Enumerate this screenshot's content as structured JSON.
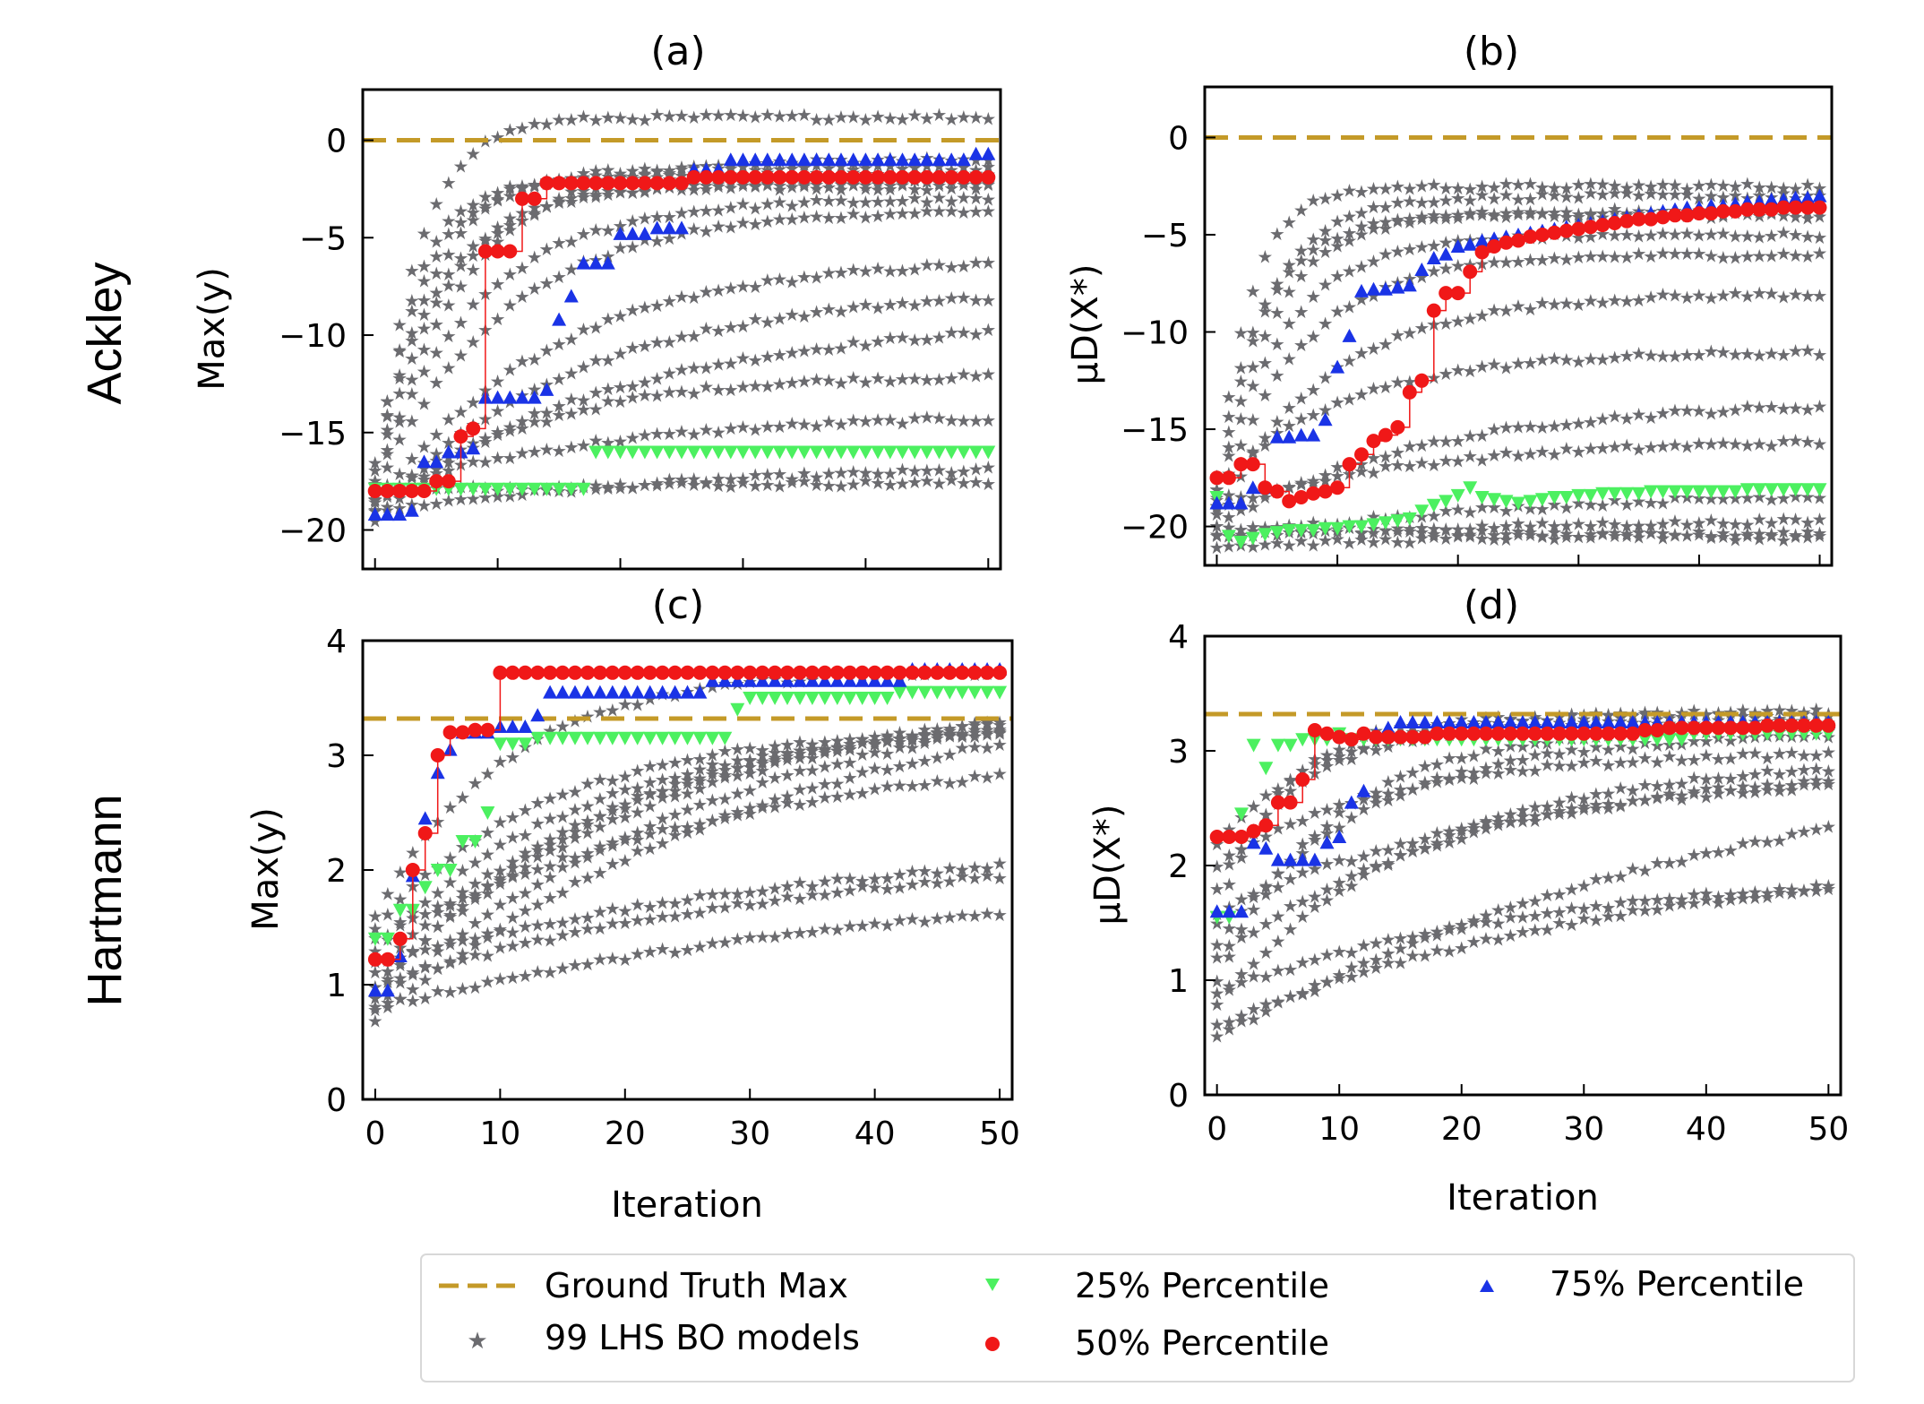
{
  "figure": {
    "row_labels": [
      "Ackley",
      "Hartmann"
    ],
    "legend": {
      "ground_truth": "Ground Truth Max",
      "models": "99 LHS BO models",
      "p25": "25% Percentile",
      "p50": "50% Percentile",
      "p75": "75% Percentile"
    },
    "colors": {
      "ground_truth": "#c49a28",
      "models": "#6b6b6f",
      "p25": "#4cf060",
      "p50": "#f01818",
      "p75": "#1a33e6"
    }
  },
  "chart_data": [
    {
      "id": "a",
      "type": "scatter",
      "title": "(a)",
      "xlabel": "",
      "ylabel": "Max(y)",
      "xlim": [
        -1,
        51
      ],
      "ylim": [
        -22,
        2.6
      ],
      "xticks": [
        0,
        10,
        20,
        30,
        40,
        50
      ],
      "yticks": [
        0,
        -5,
        -10,
        -15,
        -20
      ],
      "ground_truth": 0,
      "gray_seeds": [
        [
          -18.5,
          1.9,
          -1.4
        ],
        [
          -19,
          2.8,
          -2.0
        ],
        [
          -17.5,
          1.5,
          -2.2
        ],
        [
          -18,
          0.8,
          -3.5
        ],
        [
          -19,
          0.6,
          -6.0
        ],
        [
          -18.5,
          1.2,
          -1.0
        ],
        [
          -17,
          2.2,
          -1.8
        ],
        [
          -18.5,
          0.4,
          -9.0
        ],
        [
          -16.5,
          1.6,
          -2.4
        ],
        [
          -19.5,
          0.7,
          -12.0
        ],
        [
          -18,
          0.45,
          -14.0
        ],
        [
          -19,
          0.3,
          -16.5
        ],
        [
          -17.5,
          1.0,
          -3.0
        ],
        [
          -18.5,
          2.5,
          1.2
        ],
        [
          -19,
          0.5,
          -7.5
        ],
        [
          -18,
          0.35,
          -17.5
        ]
      ],
      "series": [
        {
          "name": "25% Percentile",
          "values": [
            -17.9,
            -17.9,
            -17.9,
            -17.9,
            -17.9,
            -17.9,
            -17.9,
            -17.9,
            -17.9,
            -17.9,
            -17.9,
            -17.9,
            -17.9,
            -17.9,
            -17.9,
            -17.9,
            -17.9,
            -17.9,
            -16.0,
            -16.0,
            -16.0,
            -16.0,
            -16.0,
            -16.0,
            -16.0,
            -16.0,
            -16.0,
            -16.0,
            -16.0,
            -16.0,
            -16.0,
            -16.0,
            -16.0,
            -16.0,
            -16.0,
            -16.0,
            -16.0,
            -16.0,
            -16.0,
            -16.0,
            -16.0,
            -16.0,
            -16.0,
            -16.0,
            -16.0,
            -16.0,
            -16.0,
            -16.0,
            -16.0,
            -16.0,
            -16.0
          ]
        },
        {
          "name": "50% Percentile",
          "values": [
            -18.0,
            -18.0,
            -18.0,
            -18.0,
            -18.0,
            -17.5,
            -17.5,
            -15.2,
            -14.8,
            -5.7,
            -5.7,
            -5.7,
            -3.0,
            -3.0,
            -2.2,
            -2.2,
            -2.2,
            -2.2,
            -2.2,
            -2.2,
            -2.2,
            -2.2,
            -2.2,
            -2.2,
            -2.2,
            -2.2,
            -1.9,
            -1.9,
            -1.9,
            -1.9,
            -1.9,
            -1.9,
            -1.9,
            -1.9,
            -1.9,
            -1.9,
            -1.9,
            -1.9,
            -1.9,
            -1.9,
            -1.9,
            -1.9,
            -1.9,
            -1.9,
            -1.9,
            -1.9,
            -1.9,
            -1.9,
            -1.9,
            -1.9,
            -1.9
          ]
        },
        {
          "name": "75% Percentile",
          "values": [
            -19.2,
            -19.2,
            -19.2,
            -19.0,
            -16.5,
            -16.5,
            -16.0,
            -16.0,
            -15.8,
            -13.2,
            -13.2,
            -13.2,
            -13.2,
            -13.2,
            -12.8,
            -9.2,
            -8.0,
            -6.3,
            -6.3,
            -6.3,
            -4.8,
            -4.8,
            -4.8,
            -4.5,
            -4.5,
            -4.5,
            -1.5,
            -1.5,
            -1.5,
            -1.0,
            -1.0,
            -1.0,
            -1.0,
            -1.0,
            -1.0,
            -1.0,
            -1.0,
            -1.0,
            -1.0,
            -1.0,
            -1.0,
            -1.0,
            -1.0,
            -1.0,
            -1.0,
            -1.0,
            -1.0,
            -1.0,
            -1.0,
            -0.7,
            -0.7
          ]
        }
      ]
    },
    {
      "id": "b",
      "type": "scatter",
      "title": "(b)",
      "xlabel": "",
      "ylabel": "μD(X*)",
      "xlim": [
        -1,
        51
      ],
      "ylim": [
        -22,
        2.6
      ],
      "xticks": [
        0,
        10,
        20,
        30,
        40,
        50
      ],
      "yticks": [
        0,
        -5,
        -10,
        -15,
        -20
      ],
      "ground_truth": 0,
      "gray_seeds": [
        [
          -18,
          3.0,
          -2.5
        ],
        [
          -17.5,
          2.0,
          -3.0
        ],
        [
          -19,
          1.8,
          -3.8
        ],
        [
          -18.5,
          1.5,
          -5.0
        ],
        [
          -19.5,
          0.9,
          -8.0
        ],
        [
          -18,
          0.8,
          -11.0
        ],
        [
          -20,
          0.5,
          -13.5
        ],
        [
          -19,
          0.5,
          -15.5
        ],
        [
          -20.5,
          0.3,
          -18.0
        ],
        [
          -21,
          0.2,
          -20.0
        ],
        [
          -20,
          0.15,
          -21.0
        ],
        [
          -18.5,
          2.2,
          -4.0
        ],
        [
          -19,
          1.2,
          -6.0
        ],
        [
          -20.5,
          0.25,
          -19.5
        ]
      ],
      "series": [
        {
          "name": "25% Percentile",
          "values": [
            -18.5,
            -20.5,
            -20.8,
            -20.6,
            -20.4,
            -20.3,
            -20.2,
            -20.2,
            -20.2,
            -20.1,
            -20.1,
            -20.0,
            -20.0,
            -19.9,
            -19.8,
            -19.7,
            -19.6,
            -19.2,
            -18.9,
            -18.7,
            -18.4,
            -18.0,
            -18.5,
            -18.6,
            -18.7,
            -18.8,
            -18.7,
            -18.6,
            -18.5,
            -18.5,
            -18.4,
            -18.4,
            -18.3,
            -18.3,
            -18.3,
            -18.3,
            -18.2,
            -18.2,
            -18.2,
            -18.2,
            -18.2,
            -18.2,
            -18.2,
            -18.2,
            -18.1,
            -18.1,
            -18.1,
            -18.1,
            -18.1,
            -18.1,
            -18.1
          ]
        },
        {
          "name": "50% Percentile",
          "values": [
            -17.5,
            -17.5,
            -16.8,
            -16.8,
            -18.0,
            -18.2,
            -18.7,
            -18.5,
            -18.3,
            -18.2,
            -18.0,
            -16.8,
            -16.3,
            -15.6,
            -15.3,
            -14.9,
            -13.1,
            -12.5,
            -8.9,
            -8.0,
            -8.0,
            -6.9,
            -5.9,
            -5.6,
            -5.4,
            -5.3,
            -5.1,
            -5.0,
            -4.9,
            -4.8,
            -4.7,
            -4.6,
            -4.5,
            -4.4,
            -4.3,
            -4.2,
            -4.2,
            -4.1,
            -4.0,
            -4.0,
            -3.9,
            -3.9,
            -3.8,
            -3.8,
            -3.7,
            -3.7,
            -3.7,
            -3.6,
            -3.6,
            -3.6,
            -3.6
          ]
        },
        {
          "name": "75% Percentile",
          "values": [
            -18.8,
            -18.8,
            -18.8,
            -18.0,
            -18.0,
            -15.4,
            -15.4,
            -15.3,
            -15.3,
            -14.5,
            -11.8,
            -10.2,
            -7.9,
            -7.8,
            -7.8,
            -7.7,
            -7.6,
            -6.8,
            -6.2,
            -6.0,
            -5.6,
            -5.5,
            -5.3,
            -5.2,
            -5.1,
            -5.0,
            -4.9,
            -4.8,
            -4.7,
            -4.6,
            -4.5,
            -4.4,
            -4.3,
            -4.2,
            -4.1,
            -4.0,
            -3.9,
            -3.8,
            -3.7,
            -3.6,
            -3.6,
            -3.5,
            -3.5,
            -3.4,
            -3.3,
            -3.3,
            -3.2,
            -3.2,
            -3.1,
            -3.1,
            -3.0
          ]
        }
      ]
    },
    {
      "id": "c",
      "type": "scatter",
      "title": "(c)",
      "xlabel": "Iteration",
      "ylabel": "Max(y)",
      "xlim": [
        -1,
        51
      ],
      "ylim": [
        0,
        4
      ],
      "xticks": [
        0,
        10,
        20,
        30,
        40,
        50
      ],
      "yticks": [
        0,
        1,
        2,
        3,
        4
      ],
      "ground_truth": 3.32,
      "gray_seeds": [
        [
          0.7,
          0.25,
          3.8
        ],
        [
          0.8,
          0.3,
          3.7
        ],
        [
          1.0,
          0.35,
          3.6
        ],
        [
          1.1,
          0.4,
          3.5
        ],
        [
          1.3,
          0.5,
          3.3
        ],
        [
          1.5,
          0.6,
          3.25
        ],
        [
          0.9,
          0.45,
          3.4
        ],
        [
          1.2,
          0.2,
          2.4
        ],
        [
          0.8,
          0.18,
          2.05
        ],
        [
          1.4,
          0.28,
          3.15
        ],
        [
          1.0,
          0.22,
          2.3
        ],
        [
          1.6,
          0.8,
          3.75
        ]
      ],
      "series": [
        {
          "name": "25% Percentile",
          "values": [
            1.4,
            1.4,
            1.65,
            1.65,
            1.85,
            2.0,
            2.0,
            2.25,
            2.25,
            2.5,
            3.1,
            3.1,
            3.1,
            3.15,
            3.15,
            3.15,
            3.15,
            3.15,
            3.15,
            3.15,
            3.15,
            3.15,
            3.15,
            3.15,
            3.15,
            3.15,
            3.15,
            3.15,
            3.15,
            3.4,
            3.5,
            3.5,
            3.5,
            3.5,
            3.5,
            3.5,
            3.5,
            3.5,
            3.5,
            3.5,
            3.5,
            3.5,
            3.55,
            3.55,
            3.55,
            3.55,
            3.55,
            3.55,
            3.55,
            3.55,
            3.55
          ]
        },
        {
          "name": "50% Percentile",
          "values": [
            1.22,
            1.22,
            1.4,
            2.0,
            2.32,
            3.0,
            3.2,
            3.2,
            3.22,
            3.22,
            3.72,
            3.72,
            3.72,
            3.72,
            3.72,
            3.72,
            3.72,
            3.72,
            3.72,
            3.72,
            3.72,
            3.72,
            3.72,
            3.72,
            3.72,
            3.72,
            3.72,
            3.72,
            3.72,
            3.72,
            3.72,
            3.72,
            3.72,
            3.72,
            3.72,
            3.72,
            3.72,
            3.72,
            3.72,
            3.72,
            3.72,
            3.72,
            3.72,
            3.72,
            3.72,
            3.72,
            3.72,
            3.72,
            3.72,
            3.72,
            3.72
          ]
        },
        {
          "name": "75% Percentile",
          "values": [
            0.95,
            0.95,
            1.25,
            1.95,
            2.45,
            2.85,
            3.05,
            3.2,
            3.2,
            3.2,
            3.25,
            3.25,
            3.25,
            3.35,
            3.55,
            3.55,
            3.55,
            3.55,
            3.55,
            3.55,
            3.55,
            3.55,
            3.55,
            3.55,
            3.55,
            3.55,
            3.55,
            3.65,
            3.65,
            3.65,
            3.65,
            3.65,
            3.65,
            3.65,
            3.65,
            3.65,
            3.65,
            3.65,
            3.65,
            3.65,
            3.65,
            3.65,
            3.65,
            3.75,
            3.75,
            3.75,
            3.75,
            3.75,
            3.75,
            3.75,
            3.75
          ]
        }
      ]
    },
    {
      "id": "d",
      "type": "scatter",
      "title": "(d)",
      "xlabel": "Iteration",
      "ylabel": "μD(X*)",
      "xlim": [
        -1,
        51
      ],
      "ylim": [
        0,
        4
      ],
      "xticks": [
        0,
        10,
        20,
        30,
        40,
        50
      ],
      "yticks": [
        0,
        1,
        2,
        3,
        4
      ],
      "ground_truth": 3.32,
      "gray_seeds": [
        [
          1.5,
          1.6,
          3.3
        ],
        [
          1.0,
          0.9,
          3.2
        ],
        [
          1.8,
          1.2,
          3.25
        ],
        [
          2.0,
          0.6,
          3.0
        ],
        [
          0.8,
          0.5,
          2.95
        ],
        [
          1.3,
          0.7,
          3.15
        ],
        [
          0.6,
          0.25,
          2.15
        ],
        [
          0.9,
          0.3,
          2.0
        ],
        [
          1.2,
          0.4,
          2.9
        ],
        [
          2.2,
          0.9,
          3.35
        ],
        [
          0.5,
          0.2,
          3.1
        ],
        [
          1.6,
          0.35,
          2.85
        ]
      ],
      "series": [
        {
          "name": "25% Percentile",
          "values": [
            1.55,
            1.55,
            2.45,
            3.05,
            2.85,
            3.05,
            3.05,
            3.1,
            3.1,
            3.1,
            3.15,
            3.1,
            3.1,
            3.1,
            3.1,
            3.1,
            3.1,
            3.1,
            3.1,
            3.1,
            3.1,
            3.1,
            3.1,
            3.1,
            3.1,
            3.1,
            3.1,
            3.1,
            3.1,
            3.1,
            3.1,
            3.1,
            3.1,
            3.1,
            3.1,
            3.1,
            3.1,
            3.1,
            3.1,
            3.15,
            3.15,
            3.15,
            3.15,
            3.15,
            3.15,
            3.15,
            3.15,
            3.15,
            3.15,
            3.15,
            3.15
          ]
        },
        {
          "name": "50% Percentile",
          "values": [
            2.25,
            2.25,
            2.25,
            2.3,
            2.35,
            2.55,
            2.55,
            2.75,
            3.18,
            3.15,
            3.12,
            3.1,
            3.15,
            3.12,
            3.12,
            3.12,
            3.12,
            3.12,
            3.15,
            3.15,
            3.15,
            3.15,
            3.15,
            3.15,
            3.15,
            3.15,
            3.15,
            3.15,
            3.15,
            3.15,
            3.15,
            3.15,
            3.15,
            3.15,
            3.15,
            3.18,
            3.18,
            3.2,
            3.2,
            3.2,
            3.2,
            3.2,
            3.2,
            3.2,
            3.2,
            3.22,
            3.22,
            3.22,
            3.22,
            3.22,
            3.22
          ]
        },
        {
          "name": "75% Percentile",
          "values": [
            1.6,
            1.6,
            1.6,
            2.2,
            2.15,
            2.05,
            2.05,
            2.05,
            2.05,
            2.2,
            2.25,
            2.55,
            2.65,
            3.15,
            3.2,
            3.25,
            3.25,
            3.25,
            3.25,
            3.25,
            3.25,
            3.25,
            3.25,
            3.25,
            3.25,
            3.25,
            3.25,
            3.25,
            3.25,
            3.25,
            3.25,
            3.25,
            3.25,
            3.25,
            3.25,
            3.25,
            3.25,
            3.25,
            3.25,
            3.25,
            3.25,
            3.25,
            3.25,
            3.25,
            3.25,
            3.25,
            3.25,
            3.25,
            3.25,
            3.25,
            3.25
          ]
        }
      ]
    }
  ]
}
